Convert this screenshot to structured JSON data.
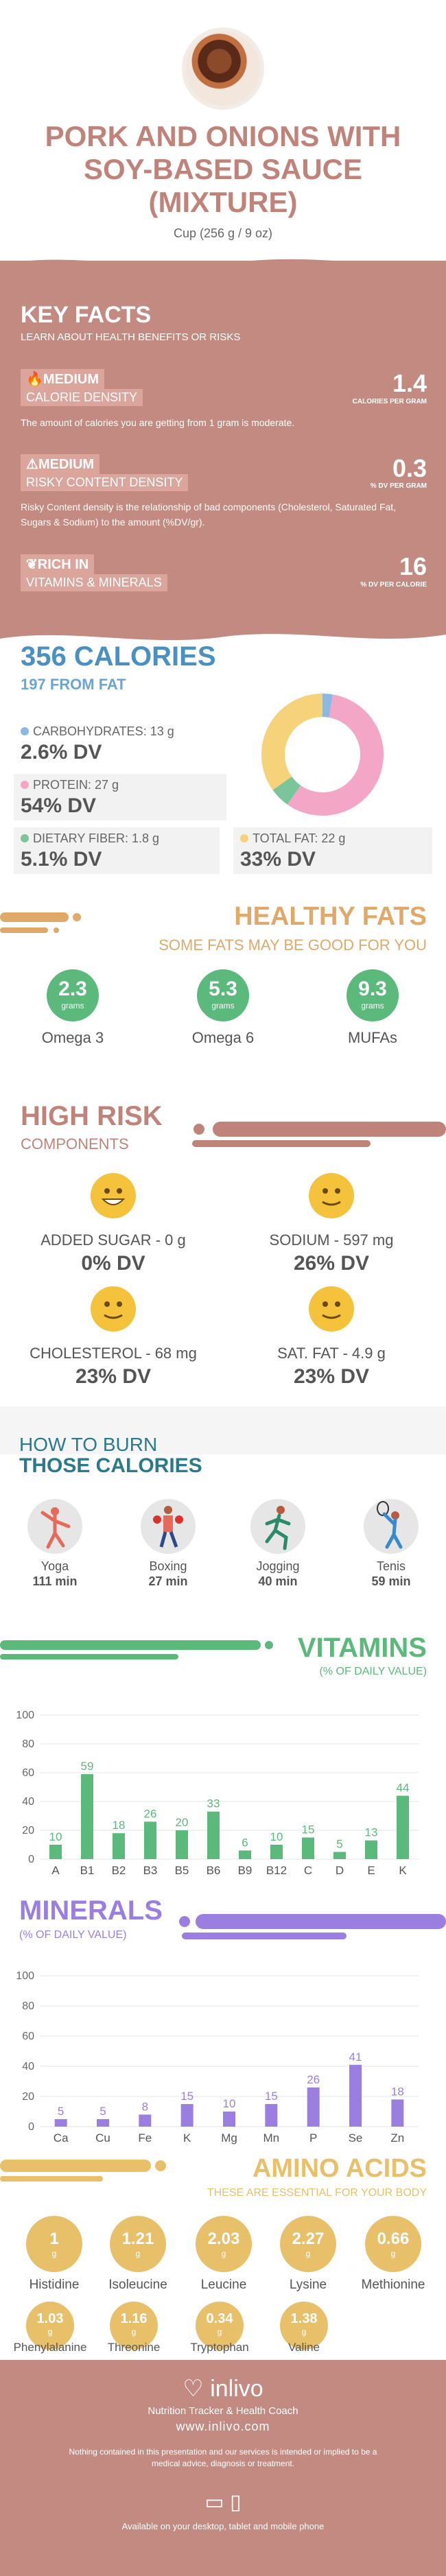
{
  "header": {
    "title": "PORK AND ONIONS WITH SOY-BASED SAUCE (MIXTURE)",
    "serving": "Cup (256 g / 9 oz)"
  },
  "key_facts": {
    "title": "KEY FACTS",
    "subtitle": "LEARN ABOUT HEALTH BENEFITS OR RISKS",
    "items": [
      {
        "level": "MEDIUM",
        "label": "CALORIE DENSITY",
        "value": "1.4",
        "unit": "CALORIES PER GRAM",
        "desc": "The amount of calories you are getting from 1 gram is moderate."
      },
      {
        "level": "MEDIUM",
        "label": "RISKY CONTENT DENSITY",
        "value": "0.3",
        "unit": "% DV PER GRAM",
        "desc": "Risky Content density is the relationship of bad components (Cholesterol, Saturated Fat, Sugars & Sodium) to the amount (%DV/gr)."
      },
      {
        "level": "RICH  IN",
        "label": "VITAMINS & MINERALS",
        "value": "16",
        "unit": "% DV PER CALORIE",
        "desc": ""
      }
    ]
  },
  "calories": {
    "title": "356 CALORIES",
    "from_fat": "197 FROM FAT",
    "nutrients": [
      {
        "label": "CARBOHYDRATES: 13 g",
        "dv": "2.6% DV",
        "color": "#8db9e0"
      },
      {
        "label": "PROTEIN: 27 g",
        "dv": "54% DV",
        "color": "#f4a6c7"
      },
      {
        "label": "DIETARY FIBER: 1.8 g",
        "dv": "5.1% DV",
        "color": "#7cc49a"
      },
      {
        "label": "TOTAL FAT: 22 g",
        "dv": "33% DV",
        "color": "#f6d27a"
      }
    ],
    "donut": [
      {
        "name": "carbs",
        "value": 2.6,
        "color": "#8db9e0"
      },
      {
        "name": "protein",
        "value": 54,
        "color": "#f4a6c7"
      },
      {
        "name": "fiber",
        "value": 5.1,
        "color": "#7cc49a"
      },
      {
        "name": "fat",
        "value": 33,
        "color": "#f6d27a"
      }
    ]
  },
  "healthy_fats": {
    "title": "HEALTHY FATS",
    "subtitle": "SOME FATS MAY BE GOOD FOR YOU",
    "items": [
      {
        "value": "2.3",
        "unit": "grams",
        "name": "Omega 3"
      },
      {
        "value": "5.3",
        "unit": "grams",
        "name": "Omega 6"
      },
      {
        "value": "9.3",
        "unit": "grams",
        "name": "MUFAs"
      }
    ]
  },
  "high_risk": {
    "title": "HIGH RISK",
    "subtitle": "COMPONENTS",
    "items": [
      {
        "label": "ADDED SUGAR - 0 g",
        "dv": "0% DV"
      },
      {
        "label": "SODIUM - 597 mg",
        "dv": "26% DV"
      },
      {
        "label": "CHOLESTEROL - 68 mg",
        "dv": "23% DV"
      },
      {
        "label": "SAT. FAT - 4.9 g",
        "dv": "23% DV"
      }
    ]
  },
  "burn": {
    "title1": "HOW TO BURN",
    "title2": "THOSE CALORIES",
    "items": [
      {
        "name": "Yoga",
        "minutes": "111 min",
        "icon": "yoga-icon"
      },
      {
        "name": "Boxing",
        "minutes": "27 min",
        "icon": "boxing-icon"
      },
      {
        "name": "Jogging",
        "minutes": "40 min",
        "icon": "jogging-icon"
      },
      {
        "name": "Tenis",
        "minutes": "59 min",
        "icon": "tennis-icon"
      }
    ]
  },
  "vitamins": {
    "title": "VITAMINS",
    "subtitle": "(% OF DAILY VALUE)",
    "chart_data": {
      "type": "bar",
      "categories": [
        "A",
        "B1",
        "B2",
        "B3",
        "B5",
        "B6",
        "B9",
        "B12",
        "C",
        "D",
        "E",
        "K"
      ],
      "values": [
        10,
        59,
        18,
        26,
        20,
        33,
        6,
        10,
        15,
        5,
        13,
        44
      ],
      "ylim": [
        0,
        100
      ],
      "yticks": [
        "0",
        "20",
        "40",
        "60",
        "80",
        "100"
      ],
      "color": "#5cb97c"
    }
  },
  "minerals": {
    "title": "MINERALS",
    "subtitle": "(% OF DAILY VALUE)",
    "chart_data": {
      "type": "bar",
      "categories": [
        "Ca",
        "Cu",
        "Fe",
        "K",
        "Mg",
        "Mn",
        "P",
        "Se",
        "Zn"
      ],
      "values": [
        5,
        5,
        8,
        15,
        10,
        15,
        26,
        41,
        18
      ],
      "ylim": [
        0,
        100
      ],
      "yticks": [
        "0",
        "20",
        "40",
        "60",
        "80",
        "100"
      ],
      "color": "#9b7fe0"
    }
  },
  "amino": {
    "title": "AMINO ACIDS",
    "subtitle": "THESE ARE ESSENTIAL FOR YOUR BODY",
    "items": [
      {
        "value": "1",
        "unit": "g",
        "name": "Histidine"
      },
      {
        "value": "1.21",
        "unit": "g",
        "name": "Isoleucine"
      },
      {
        "value": "2.03",
        "unit": "g",
        "name": "Leucine"
      },
      {
        "value": "2.27",
        "unit": "g",
        "name": "Lysine"
      },
      {
        "value": "0.66",
        "unit": "g",
        "name": "Methionine"
      },
      {
        "value": "1.03",
        "unit": "g",
        "name": "Phenylalanine"
      },
      {
        "value": "1.16",
        "unit": "g",
        "name": "Threonine"
      },
      {
        "value": "0.34",
        "unit": "g",
        "name": "Tryptophan"
      },
      {
        "value": "1.38",
        "unit": "g",
        "name": "Valine"
      }
    ]
  },
  "footer": {
    "brand": "inlivo",
    "tagline": "Nutrition Tracker & Health Coach",
    "url": "www.inlivo.com",
    "disclaimer": "Nothing contained in this presentation and our services is intended or implied to be a medical advice, diagnosis or treatment.",
    "available": "Available on your desktop, tablet and mobile phone"
  }
}
